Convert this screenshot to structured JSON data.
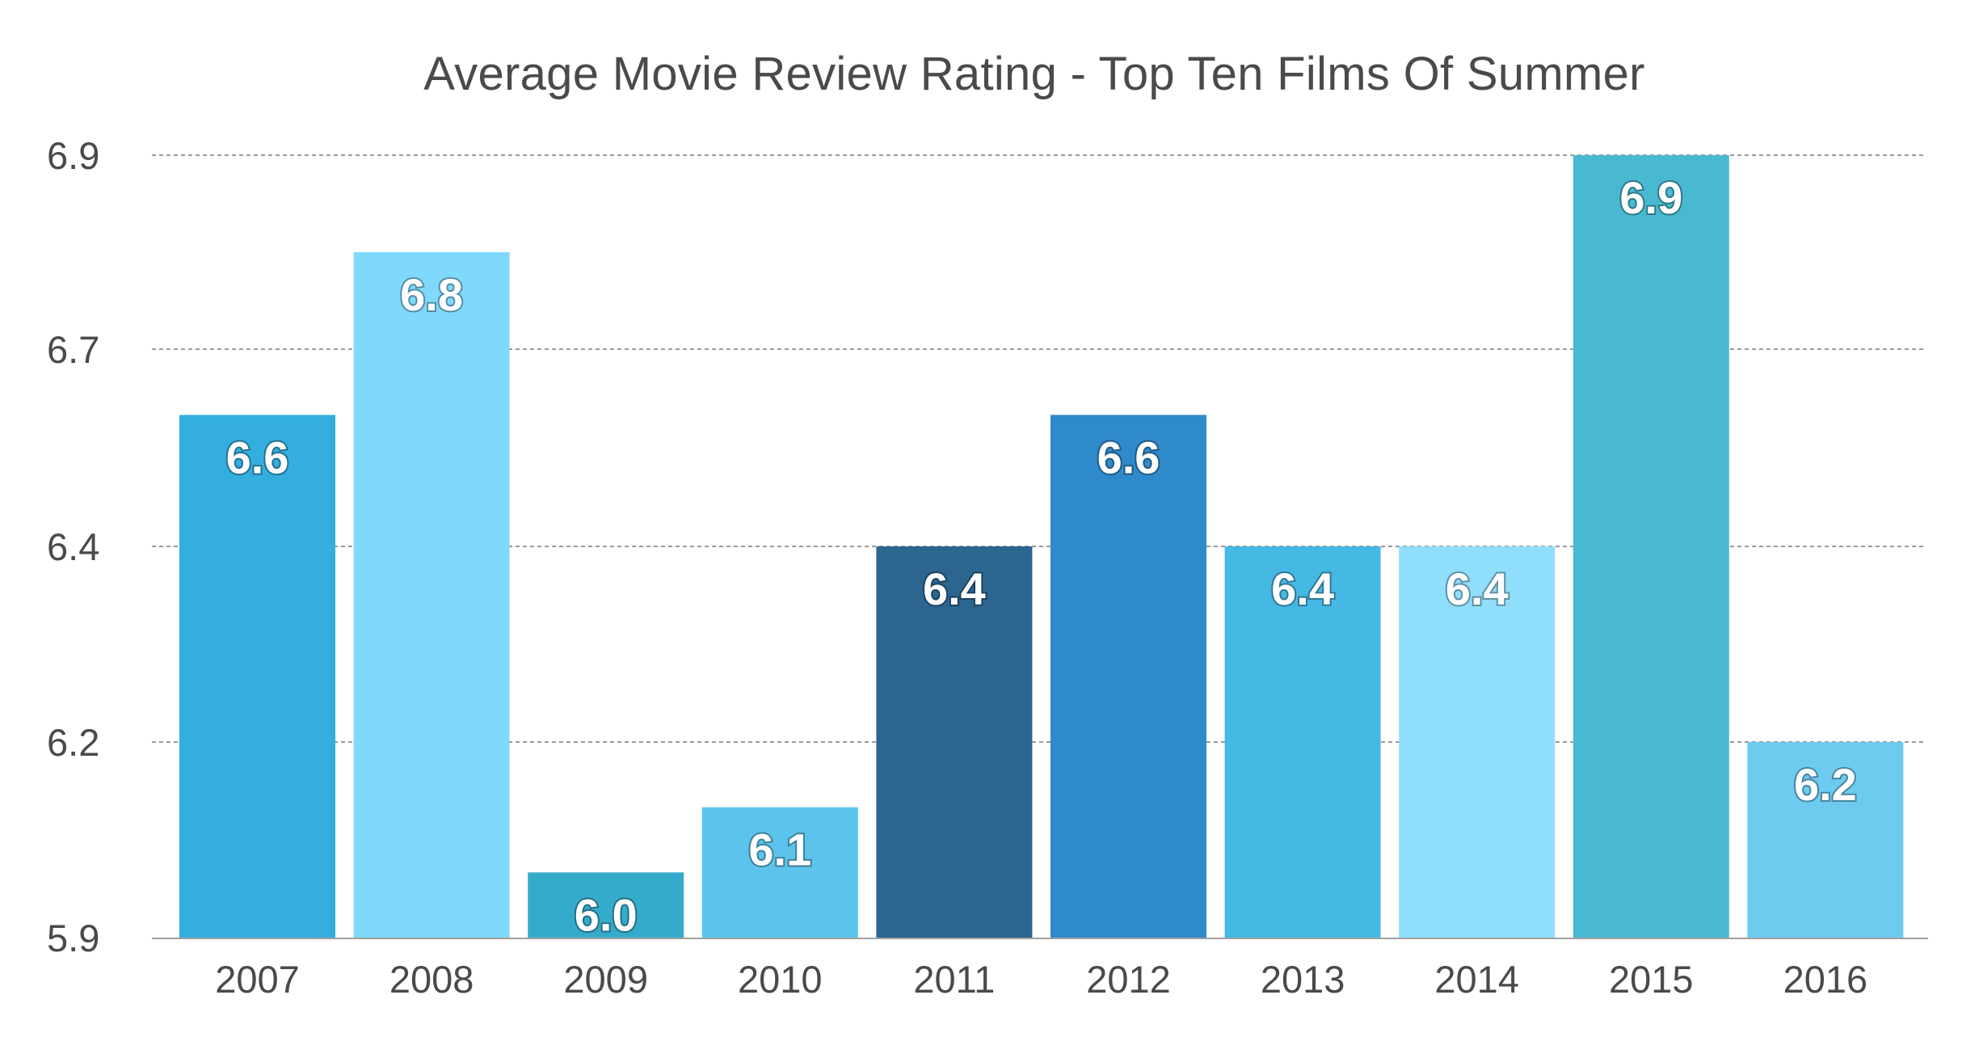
{
  "chart_data": {
    "type": "bar",
    "title": "Average Movie Review Rating - Top Ten Films Of Summer",
    "xlabel": "",
    "ylabel": "",
    "categories": [
      "2007",
      "2008",
      "2009",
      "2010",
      "2011",
      "2012",
      "2013",
      "2014",
      "2015",
      "2016"
    ],
    "values": [
      6.6,
      6.8,
      6.0,
      6.1,
      6.4,
      6.6,
      6.4,
      6.4,
      6.9,
      6.2
    ],
    "value_labels": [
      "6.6",
      "6.8",
      "6.0",
      "6.1",
      "6.4",
      "6.6",
      "6.4",
      "6.4",
      "6.9",
      "6.2"
    ],
    "y_ticks": [
      "5.9",
      "6.2",
      "6.4",
      "6.7",
      "6.9"
    ],
    "ylim": [
      5.9,
      6.9
    ],
    "grid": true,
    "legend": "none",
    "colors": [
      "#33aedf",
      "#7fd9fc",
      "#35abcb",
      "#5cc4ec",
      "#2b6590",
      "#2f8acb",
      "#45b8e3",
      "#8fdefc",
      "#48b9d0",
      "#6dcbf0"
    ]
  }
}
